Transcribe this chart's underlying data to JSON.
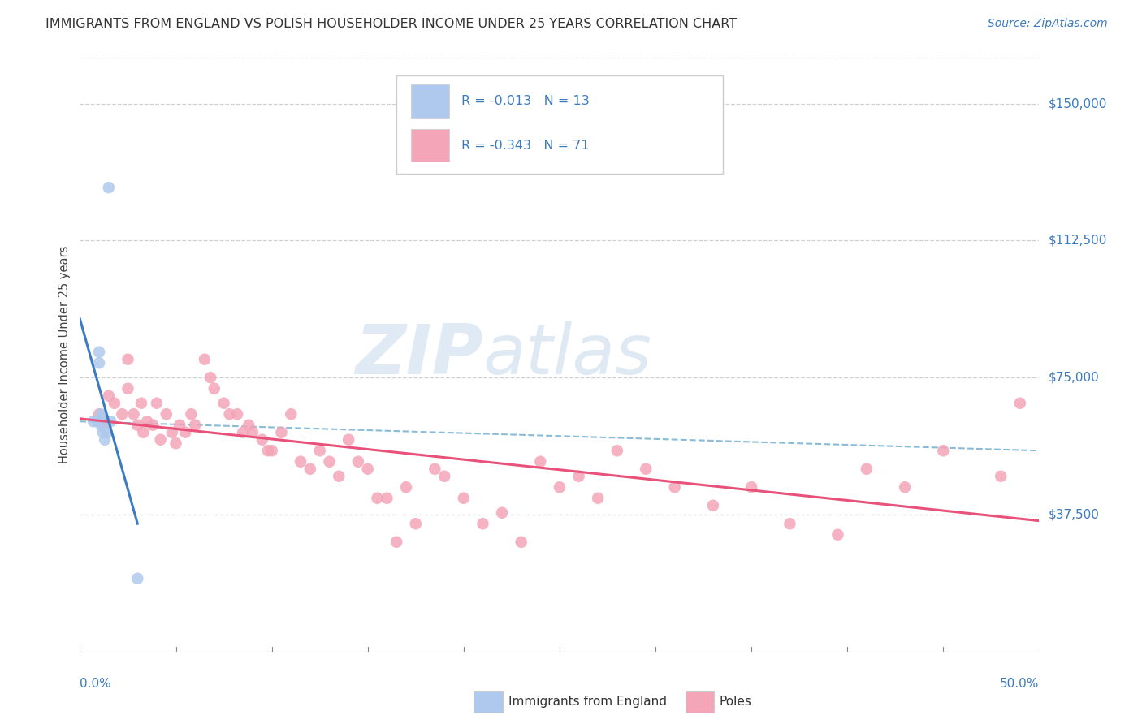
{
  "title": "IMMIGRANTS FROM ENGLAND VS POLISH HOUSEHOLDER INCOME UNDER 25 YEARS CORRELATION CHART",
  "source": "Source: ZipAtlas.com",
  "ylabel": "Householder Income Under 25 years",
  "legend_bottom": [
    "Immigrants from England",
    "Poles"
  ],
  "r_england": -0.013,
  "n_england": 13,
  "r_poles": -0.343,
  "n_poles": 71,
  "xlim": [
    0.0,
    0.5
  ],
  "ylim": [
    0,
    162500
  ],
  "yticks": [
    37500,
    75000,
    112500,
    150000
  ],
  "ytick_labels": [
    "$37,500",
    "$75,000",
    "$112,500",
    "$150,000"
  ],
  "england_color": "#aec9ed",
  "poles_color": "#f4a5b8",
  "england_line_color": "#3d7bbf",
  "poles_line_color": "#e8527a",
  "dashed_line_color": "#88bbd8",
  "background_color": "#ffffff",
  "grid_color": "#d0d0d0",
  "england_scatter": {
    "x": [
      0.007,
      0.009,
      0.01,
      0.01,
      0.011,
      0.011,
      0.012,
      0.012,
      0.013,
      0.014,
      0.015,
      0.016,
      0.03
    ],
    "y": [
      63000,
      63000,
      82000,
      79000,
      65000,
      62000,
      64000,
      60000,
      58000,
      60000,
      127000,
      63000,
      20000
    ]
  },
  "poles_scatter": {
    "x": [
      0.01,
      0.013,
      0.015,
      0.018,
      0.022,
      0.025,
      0.025,
      0.028,
      0.03,
      0.032,
      0.033,
      0.035,
      0.038,
      0.04,
      0.042,
      0.045,
      0.048,
      0.05,
      0.052,
      0.055,
      0.058,
      0.06,
      0.065,
      0.068,
      0.07,
      0.075,
      0.078,
      0.082,
      0.085,
      0.088,
      0.09,
      0.095,
      0.098,
      0.1,
      0.105,
      0.11,
      0.115,
      0.12,
      0.125,
      0.13,
      0.135,
      0.14,
      0.145,
      0.15,
      0.155,
      0.16,
      0.165,
      0.17,
      0.175,
      0.185,
      0.19,
      0.2,
      0.21,
      0.22,
      0.23,
      0.24,
      0.25,
      0.26,
      0.27,
      0.28,
      0.295,
      0.31,
      0.33,
      0.35,
      0.37,
      0.395,
      0.41,
      0.43,
      0.45,
      0.48,
      0.49
    ],
    "y": [
      65000,
      62000,
      70000,
      68000,
      65000,
      80000,
      72000,
      65000,
      62000,
      68000,
      60000,
      63000,
      62000,
      68000,
      58000,
      65000,
      60000,
      57000,
      62000,
      60000,
      65000,
      62000,
      80000,
      75000,
      72000,
      68000,
      65000,
      65000,
      60000,
      62000,
      60000,
      58000,
      55000,
      55000,
      60000,
      65000,
      52000,
      50000,
      55000,
      52000,
      48000,
      58000,
      52000,
      50000,
      42000,
      42000,
      30000,
      45000,
      35000,
      50000,
      48000,
      42000,
      35000,
      38000,
      30000,
      52000,
      45000,
      48000,
      42000,
      55000,
      50000,
      45000,
      40000,
      45000,
      35000,
      32000,
      50000,
      45000,
      55000,
      48000,
      68000
    ]
  },
  "watermark_zip": "ZIP",
  "watermark_atlas": "atlas",
  "title_fontsize": 11.5,
  "source_fontsize": 10,
  "tick_label_fontsize": 11,
  "ylabel_fontsize": 10.5
}
